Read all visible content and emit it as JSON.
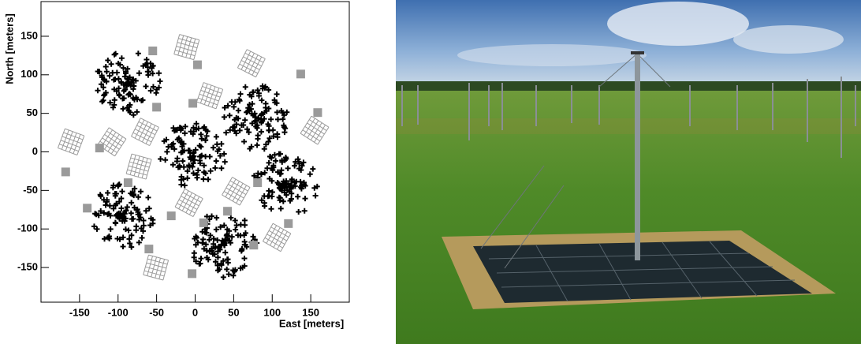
{
  "chart_data": {
    "type": "scatter",
    "xlabel": "East [meters]",
    "ylabel": "North [meters]",
    "xlim": [
      -200,
      200
    ],
    "ylim": [
      -195,
      195
    ],
    "xticks": [
      -150,
      -100,
      -50,
      0,
      50,
      100,
      150
    ],
    "yticks": [
      -150,
      -100,
      -50,
      0,
      50,
      100,
      150
    ],
    "series": [
      {
        "marker": "cross",
        "color": "#000000",
        "x": [
          -88,
          78,
          -3,
          118,
          -95,
          37
        ],
        "values": [
          90,
          45,
          -3,
          -42,
          -83,
          -120
        ]
      },
      {
        "marker": "tile",
        "color": "#9a9a9a",
        "x": [
          -11,
          73,
          19,
          -161,
          -108,
          -65,
          155,
          -73,
          53,
          -8,
          106,
          -51
        ],
        "values": [
          136,
          115,
          73,
          13,
          13,
          26,
          28,
          -19,
          -51,
          -66,
          -111,
          -150
        ]
      },
      {
        "marker": "square",
        "color": "#9a9a9a",
        "x": [
          -55,
          3,
          137,
          -50,
          -3,
          159,
          -124,
          -168,
          -87,
          81,
          -140,
          -31,
          42,
          11,
          121,
          76,
          -60,
          -4
        ],
        "values": [
          131,
          113,
          101,
          58,
          63,
          51,
          5,
          -26,
          -40,
          -40,
          -73,
          -83,
          -77,
          -92,
          -93,
          -121,
          -126,
          -158
        ]
      }
    ]
  }
}
